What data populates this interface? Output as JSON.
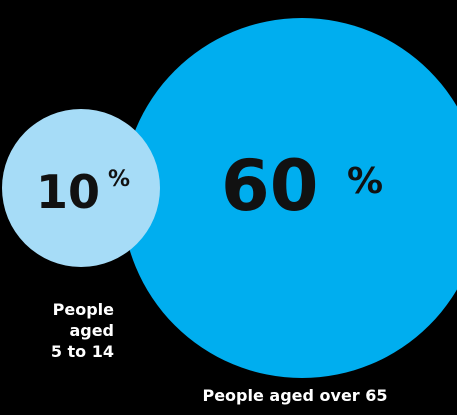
{
  "chart_data": {
    "type": "bubble",
    "values": [
      10,
      60
    ],
    "unit": "%",
    "labels": [
      "People aged 5 to 14",
      "People aged over 65"
    ],
    "colors": [
      "#a6dcf7",
      "#00aeef"
    ]
  },
  "captions": {
    "small": "People aged 5 to 14",
    "large": "People aged over 65"
  },
  "values_text": {
    "small": "10",
    "large": "60",
    "unit": "%"
  },
  "background_color": "#000000"
}
